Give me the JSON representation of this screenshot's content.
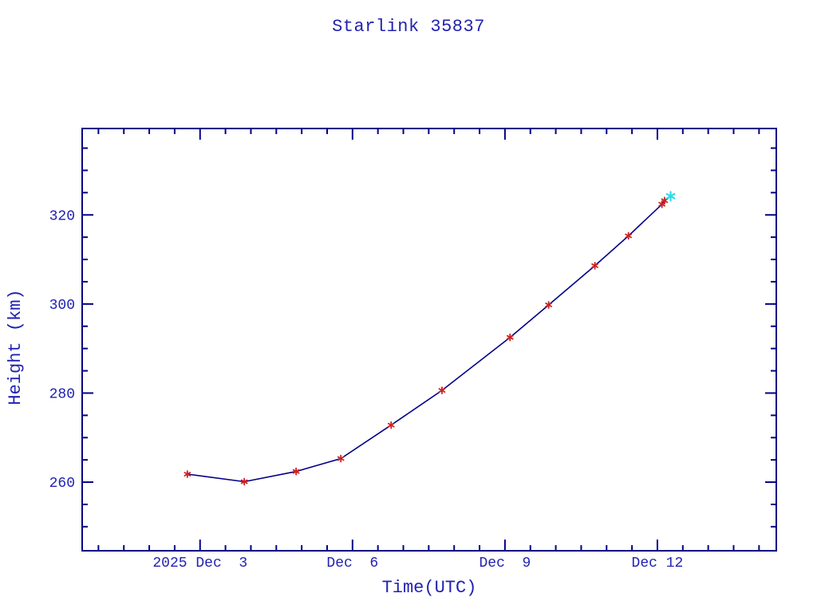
{
  "window": {
    "background": "#ffffff"
  },
  "colors": {
    "axis": "#000087",
    "line": "#000087",
    "text": "#2222b2",
    "marker_red": "#cc2222",
    "marker_cyan": "#2bdcec"
  },
  "chart_data": {
    "type": "line",
    "title": "Starlink 35837",
    "xlabel": "Time(UTC)",
    "ylabel": "Height (km)",
    "legend": "none",
    "grid": false,
    "x_axis": {
      "unit": "day of December 2025 (UTC)",
      "min": 0.68,
      "max": 14.34,
      "major_ticks": [
        {
          "value": 3,
          "label": "2025 Dec  3"
        },
        {
          "value": 6,
          "label": "Dec  6"
        },
        {
          "value": 9,
          "label": "Dec  9"
        },
        {
          "value": 12,
          "label": "Dec 12"
        }
      ],
      "minor_tick_start": 1.0,
      "minor_tick_end": 14.0,
      "minor_tick_step": 0.5
    },
    "y_axis": {
      "unit": "km",
      "min": 244.6,
      "max": 339.4,
      "major_ticks": [
        {
          "value": 260,
          "label": "260"
        },
        {
          "value": 280,
          "label": "280"
        },
        {
          "value": 300,
          "label": "300"
        },
        {
          "value": 320,
          "label": "320"
        }
      ],
      "minor_tick_start": 250,
      "minor_tick_end": 335,
      "minor_tick_step": 5
    },
    "series": [
      {
        "name": "observed-heights",
        "marker": "asterisk",
        "marker_color": "#cc2222",
        "marker_radius": 4,
        "points": [
          [
            2.75,
            261.8
          ],
          [
            3.87,
            260.1
          ],
          [
            4.89,
            262.4
          ],
          [
            5.77,
            265.3
          ],
          [
            6.76,
            272.8
          ],
          [
            7.76,
            280.6
          ],
          [
            9.1,
            292.5
          ],
          [
            9.86,
            299.8
          ],
          [
            10.77,
            308.6
          ],
          [
            11.43,
            315.3
          ],
          [
            12.09,
            322.4
          ],
          [
            12.14,
            323.2
          ]
        ]
      },
      {
        "name": "latest-height",
        "marker": "asterisk",
        "marker_color": "#2bdcec",
        "marker_radius": 5.5,
        "points": [
          [
            12.26,
            324.2
          ]
        ]
      }
    ]
  }
}
